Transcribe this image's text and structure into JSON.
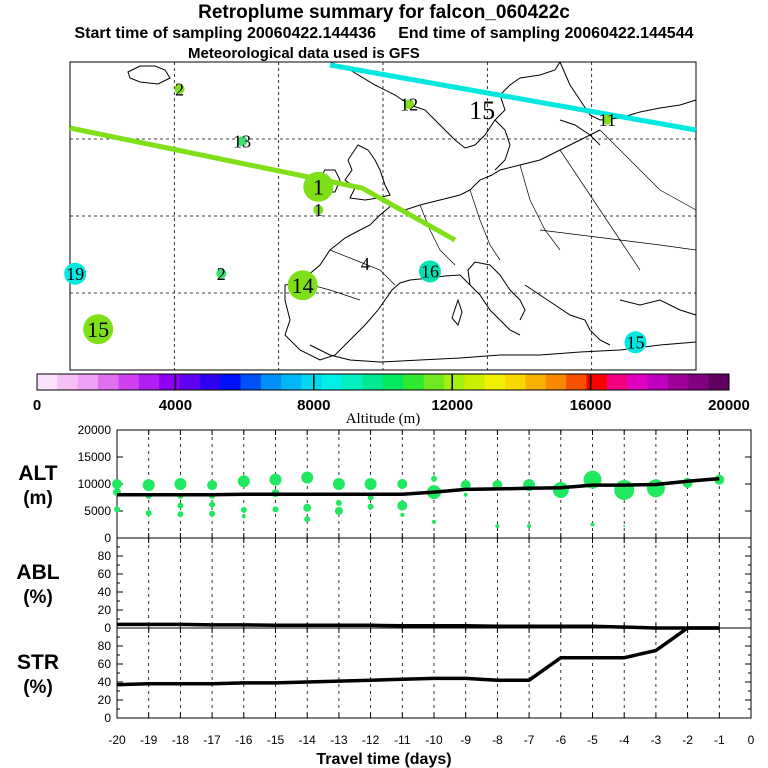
{
  "header": {
    "title": "Retroplume summary for falcon_060422c",
    "subtitle_start": "Start time of sampling 20060422.144436",
    "subtitle_end": "End time of sampling 20060422.144544",
    "subtitle_met": "Meteorological data used is GFS"
  },
  "map": {
    "markers": [
      {
        "label": "2",
        "lon": -9.5,
        "lat": 66.5,
        "color": "#7fe01a",
        "size": "small"
      },
      {
        "label": "12",
        "lon": 12.5,
        "lat": 64.5,
        "color": "#7fe01a",
        "size": "small"
      },
      {
        "label": "15",
        "lon": 19.5,
        "lat": 63.8,
        "color": "#00e8e0",
        "size": "none"
      },
      {
        "label": "11",
        "lon": 31.5,
        "lat": 62.5,
        "color": "#7fe01a",
        "size": "small"
      },
      {
        "label": "13",
        "lon": -3.5,
        "lat": 59.7,
        "color": "#3de070",
        "size": "small"
      },
      {
        "label": "1",
        "lon": 3.8,
        "lat": 53.8,
        "color": "#7fe01a",
        "size": "large"
      },
      {
        "label": "1",
        "lon": 3.8,
        "lat": 50.8,
        "color": "#7fe01a",
        "size": "small"
      },
      {
        "label": "19",
        "lon": -19.5,
        "lat": 42.5,
        "color": "#00e8e0",
        "size": "medium"
      },
      {
        "label": "2",
        "lon": -5.5,
        "lat": 42.5,
        "color": "#3de070",
        "size": "small"
      },
      {
        "label": "4",
        "lon": 8.3,
        "lat": 43.8,
        "color": "none",
        "size": "none"
      },
      {
        "label": "16",
        "lon": 14.5,
        "lat": 42.8,
        "color": "#00e0b0",
        "size": "medium"
      },
      {
        "label": "14",
        "lon": 2.3,
        "lat": 41.0,
        "color": "#7fe01a",
        "size": "large"
      },
      {
        "label": "15",
        "lon": -17.3,
        "lat": 35.3,
        "color": "#7fe01a",
        "size": "large"
      },
      {
        "label": "15",
        "lon": 34.2,
        "lat": 33.6,
        "color": "#00e8e0",
        "size": "medium"
      }
    ]
  },
  "colorbar": {
    "ticks": [
      "0",
      "4000",
      "8000",
      "12000",
      "16000",
      "20000"
    ],
    "label": "Altitude (m)",
    "colors": [
      "#fbe0fb",
      "#f5c0f5",
      "#eea0f5",
      "#e070f0",
      "#d040f0",
      "#b020f5",
      "#9000f5",
      "#6000f0",
      "#3000f0",
      "#0010f8",
      "#0050f8",
      "#0090f8",
      "#00b8f8",
      "#00d8f0",
      "#00f0e8",
      "#00f0c0",
      "#00e890",
      "#00e860",
      "#30e830",
      "#70e820",
      "#a0f010",
      "#c8f000",
      "#f0f000",
      "#f8d800",
      "#f8b000",
      "#f88800",
      "#f85000",
      "#f80000",
      "#f00080",
      "#e000c0",
      "#c000c0",
      "#a00098",
      "#800080",
      "#600060"
    ]
  },
  "chart_data": [
    {
      "type": "scatter",
      "name": "ALT",
      "ylabel": "ALT (m)",
      "ylim": [
        0,
        20000
      ],
      "yticks": [
        "0",
        "5000",
        "10000",
        "15000",
        "20000"
      ],
      "xlim": [
        -20,
        0
      ],
      "line": {
        "x": [
          -20,
          -19,
          -18,
          -17,
          -16,
          -15,
          -14,
          -13,
          -12,
          -11,
          -10,
          -9,
          -8,
          -7,
          -6,
          -5,
          -4,
          -3,
          -2,
          -1
        ],
        "y": [
          8000,
          8000,
          8000,
          8000,
          8100,
          8100,
          8100,
          8100,
          8100,
          8100,
          8500,
          9000,
          9100,
          9200,
          9300,
          9800,
          9800,
          9900,
          10500,
          11000
        ]
      },
      "points": [
        {
          "x": -20,
          "y": 10000,
          "r": 5
        },
        {
          "x": -20,
          "y": 8500,
          "r": 4
        },
        {
          "x": -20,
          "y": 5300,
          "r": 3
        },
        {
          "x": -19,
          "y": 9800,
          "r": 6
        },
        {
          "x": -19,
          "y": 7800,
          "r": 3
        },
        {
          "x": -19,
          "y": 4600,
          "r": 3
        },
        {
          "x": -18,
          "y": 10000,
          "r": 6
        },
        {
          "x": -18,
          "y": 7800,
          "r": 3
        },
        {
          "x": -18,
          "y": 6000,
          "r": 3
        },
        {
          "x": -18,
          "y": 4400,
          "r": 3
        },
        {
          "x": -17,
          "y": 9800,
          "r": 5
        },
        {
          "x": -17,
          "y": 7800,
          "r": 3
        },
        {
          "x": -17,
          "y": 6200,
          "r": 3
        },
        {
          "x": -17,
          "y": 4500,
          "r": 3
        },
        {
          "x": -16,
          "y": 10500,
          "r": 6
        },
        {
          "x": -16,
          "y": 5200,
          "r": 3
        },
        {
          "x": -16,
          "y": 4000,
          "r": 2
        },
        {
          "x": -15,
          "y": 10800,
          "r": 6
        },
        {
          "x": -15,
          "y": 8300,
          "r": 4
        },
        {
          "x": -15,
          "y": 5300,
          "r": 3
        },
        {
          "x": -14,
          "y": 11200,
          "r": 6
        },
        {
          "x": -14,
          "y": 5600,
          "r": 4
        },
        {
          "x": -14,
          "y": 3500,
          "r": 3
        },
        {
          "x": -13,
          "y": 10000,
          "r": 6
        },
        {
          "x": -13,
          "y": 6500,
          "r": 3
        },
        {
          "x": -13,
          "y": 5000,
          "r": 4
        },
        {
          "x": -12,
          "y": 10000,
          "r": 6
        },
        {
          "x": -12,
          "y": 7500,
          "r": 3
        },
        {
          "x": -12,
          "y": 5800,
          "r": 3
        },
        {
          "x": -11,
          "y": 10000,
          "r": 5
        },
        {
          "x": -11,
          "y": 6000,
          "r": 5
        },
        {
          "x": -11,
          "y": 4300,
          "r": 2
        },
        {
          "x": -10,
          "y": 11000,
          "r": 3
        },
        {
          "x": -10,
          "y": 8500,
          "r": 7
        },
        {
          "x": -10,
          "y": 3000,
          "r": 2
        },
        {
          "x": -9,
          "y": 9800,
          "r": 5
        },
        {
          "x": -9,
          "y": 8000,
          "r": 2
        },
        {
          "x": -8,
          "y": 9800,
          "r": 5
        },
        {
          "x": -8,
          "y": 2200,
          "r": 2
        },
        {
          "x": -7,
          "y": 9800,
          "r": 6
        },
        {
          "x": -7,
          "y": 2200,
          "r": 2
        },
        {
          "x": -6,
          "y": 8900,
          "r": 8
        },
        {
          "x": -5,
          "y": 10800,
          "r": 9
        },
        {
          "x": -5,
          "y": 2500,
          "r": 2
        },
        {
          "x": -4,
          "y": 8900,
          "r": 10
        },
        {
          "x": -4,
          "y": 2200,
          "r": 1
        },
        {
          "x": -3,
          "y": 9200,
          "r": 9
        },
        {
          "x": -2,
          "y": 10200,
          "r": 5
        },
        {
          "x": -1,
          "y": 10800,
          "r": 5
        }
      ]
    },
    {
      "type": "line",
      "name": "ABL",
      "ylabel": "ABL (%)",
      "ylim": [
        0,
        100
      ],
      "yticks": [
        "0",
        "20",
        "40",
        "60",
        "80"
      ],
      "xlim": [
        -20,
        0
      ],
      "x": [
        -20,
        -19,
        -18,
        -17,
        -16,
        -15,
        -14,
        -13,
        -12,
        -11,
        -10,
        -9,
        -8,
        -7,
        -6,
        -5,
        -4,
        -3,
        -2,
        -1
      ],
      "y": [
        4,
        4,
        4,
        3.5,
        3.5,
        3,
        3,
        3,
        3,
        2.5,
        2.5,
        2.5,
        2,
        2,
        2,
        2,
        1,
        0,
        0,
        0
      ]
    },
    {
      "type": "line",
      "name": "STR",
      "ylabel": "STR (%)",
      "ylim": [
        0,
        100
      ],
      "yticks": [
        "0",
        "20",
        "40",
        "60",
        "80"
      ],
      "xlim": [
        -20,
        0
      ],
      "xlabel": "Travel time (days)",
      "xticks": [
        "-20",
        "-19",
        "-18",
        "-17",
        "-16",
        "-15",
        "-14",
        "-13",
        "-12",
        "-11",
        "-10",
        "-9",
        "-8",
        "-7",
        "-6",
        "-5",
        "-4",
        "-3",
        "-2",
        "-1",
        "0"
      ],
      "x": [
        -20,
        -19,
        -18,
        -17,
        -16,
        -15,
        -14,
        -13,
        -12,
        -11,
        -10,
        -9,
        -8,
        -7,
        -6,
        -5,
        -4,
        -3,
        -2,
        -1
      ],
      "y": [
        37,
        38,
        38,
        38,
        39,
        39,
        40,
        41,
        42,
        43,
        44,
        44,
        42,
        42,
        67,
        67,
        67,
        75,
        100,
        100
      ]
    }
  ]
}
